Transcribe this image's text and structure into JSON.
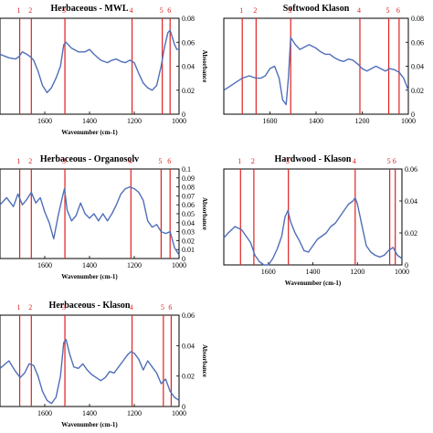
{
  "colors": {
    "curve": "#4f6fb8",
    "marker": "#e02020",
    "frame": "#000000"
  },
  "chart_data": [
    {
      "type": "line",
      "title": "Herbaceous - MWL",
      "xlabel": "Wavenumber (cm-1)",
      "ylabel": "Absorbance",
      "xlim": [
        1000,
        1800
      ],
      "xdir": "reversed",
      "ylim": [
        0,
        0.08
      ],
      "xticks": [
        "1600",
        "1400",
        "1200",
        "1000"
      ],
      "yticks": [
        "0",
        "0.02",
        "0.04",
        "0.06",
        "0.08"
      ],
      "markers": [
        {
          "label": "1",
          "x": 1712
        },
        {
          "label": "2",
          "x": 1660
        },
        {
          "label": "3",
          "x": 1510
        },
        {
          "label": "4",
          "x": 1210
        },
        {
          "label": "5",
          "x": 1075
        },
        {
          "label": "6",
          "x": 1040
        }
      ],
      "series": [
        {
          "x": [
            1800,
            1760,
            1730,
            1715,
            1700,
            1680,
            1665,
            1650,
            1630,
            1610,
            1590,
            1570,
            1550,
            1530,
            1515,
            1505,
            1480,
            1450,
            1420,
            1400,
            1380,
            1350,
            1320,
            1300,
            1280,
            1260,
            1240,
            1220,
            1200,
            1180,
            1160,
            1140,
            1120,
            1100,
            1080,
            1065,
            1050,
            1040,
            1030,
            1020,
            1010,
            1000
          ],
          "y": [
            0.05,
            0.047,
            0.046,
            0.048,
            0.052,
            0.05,
            0.048,
            0.045,
            0.036,
            0.024,
            0.018,
            0.022,
            0.03,
            0.04,
            0.058,
            0.06,
            0.055,
            0.052,
            0.052,
            0.054,
            0.05,
            0.045,
            0.043,
            0.045,
            0.046,
            0.044,
            0.043,
            0.045,
            0.043,
            0.034,
            0.026,
            0.022,
            0.02,
            0.024,
            0.04,
            0.056,
            0.068,
            0.07,
            0.064,
            0.058,
            0.054,
            0.054
          ]
        }
      ]
    },
    {
      "type": "line",
      "title": "Softwood Klason",
      "xlabel": "",
      "ylabel": "",
      "xlim": [
        1000,
        1800
      ],
      "xdir": "reversed",
      "ylim": [
        0,
        0.08
      ],
      "xticks": [
        "1600",
        "1400",
        "1200",
        "1000"
      ],
      "yticks": [
        "0",
        "0.02",
        "0.04",
        "0.06",
        "0.08"
      ],
      "markers": [
        {
          "label": "1",
          "x": 1720
        },
        {
          "label": "2",
          "x": 1660
        },
        {
          "label": "3",
          "x": 1510
        },
        {
          "label": "4",
          "x": 1210
        },
        {
          "label": "5",
          "x": 1085
        },
        {
          "label": "6",
          "x": 1040
        }
      ],
      "series": [
        {
          "x": [
            1800,
            1760,
            1720,
            1690,
            1660,
            1640,
            1620,
            1600,
            1580,
            1560,
            1545,
            1530,
            1520,
            1510,
            1490,
            1470,
            1450,
            1430,
            1400,
            1380,
            1360,
            1340,
            1320,
            1300,
            1280,
            1260,
            1240,
            1220,
            1210,
            1200,
            1180,
            1160,
            1140,
            1120,
            1100,
            1080,
            1060,
            1040,
            1020,
            1000
          ],
          "y": [
            0.02,
            0.025,
            0.03,
            0.032,
            0.03,
            0.03,
            0.032,
            0.038,
            0.04,
            0.03,
            0.012,
            0.008,
            0.03,
            0.064,
            0.058,
            0.054,
            0.056,
            0.058,
            0.055,
            0.052,
            0.05,
            0.05,
            0.047,
            0.045,
            0.044,
            0.046,
            0.045,
            0.042,
            0.04,
            0.038,
            0.036,
            0.038,
            0.04,
            0.038,
            0.036,
            0.038,
            0.037,
            0.035,
            0.03,
            0.02
          ]
        }
      ]
    },
    {
      "type": "line",
      "title": "Herbaceous - Organosolv",
      "xlabel": "Wavenumber (cm-1)",
      "ylabel": "Absorbance",
      "xlim": [
        1000,
        1800
      ],
      "xdir": "reversed",
      "ylim": [
        0,
        0.1
      ],
      "xticks": [
        "1600",
        "1400",
        "1200",
        "1000"
      ],
      "yticks": [
        "0",
        "0.01",
        "0.02",
        "0.03",
        "0.04",
        "0.05",
        "0.06",
        "0.07",
        "0.08",
        "0.09",
        "0.1"
      ],
      "markers": [
        {
          "label": "1",
          "x": 1712
        },
        {
          "label": "2",
          "x": 1660
        },
        {
          "label": "3",
          "x": 1510
        },
        {
          "label": "4",
          "x": 1215
        },
        {
          "label": "5",
          "x": 1080
        },
        {
          "label": "6",
          "x": 1040
        }
      ],
      "series": [
        {
          "x": [
            1800,
            1770,
            1740,
            1720,
            1700,
            1680,
            1660,
            1640,
            1620,
            1600,
            1580,
            1560,
            1540,
            1520,
            1512,
            1500,
            1480,
            1460,
            1440,
            1420,
            1400,
            1380,
            1360,
            1340,
            1320,
            1300,
            1280,
            1260,
            1240,
            1220,
            1200,
            1180,
            1160,
            1140,
            1120,
            1100,
            1080,
            1060,
            1040,
            1020,
            1000
          ],
          "y": [
            0.06,
            0.068,
            0.058,
            0.072,
            0.06,
            0.066,
            0.074,
            0.062,
            0.068,
            0.052,
            0.04,
            0.022,
            0.048,
            0.07,
            0.078,
            0.054,
            0.042,
            0.048,
            0.062,
            0.05,
            0.045,
            0.05,
            0.042,
            0.05,
            0.042,
            0.05,
            0.06,
            0.072,
            0.078,
            0.08,
            0.078,
            0.074,
            0.065,
            0.042,
            0.035,
            0.038,
            0.03,
            0.028,
            0.03,
            0.012,
            0.004
          ]
        }
      ]
    },
    {
      "type": "line",
      "title": "Hardwood - Klason",
      "xlabel": "Wavenumber (cm-1)",
      "ylabel": "",
      "xlim": [
        1000,
        1800
      ],
      "xdir": "reversed",
      "ylim": [
        0,
        0.06
      ],
      "xticks": [
        "1600",
        "1400",
        "1200",
        "1000"
      ],
      "yticks": [
        "0",
        "0.02",
        "0.04",
        "0.06"
      ],
      "markers": [
        {
          "label": "1",
          "x": 1725
        },
        {
          "label": "2",
          "x": 1665
        },
        {
          "label": "3",
          "x": 1510
        },
        {
          "label": "4",
          "x": 1210
        },
        {
          "label": "5",
          "x": 1055
        },
        {
          "label": "6",
          "x": 1030
        }
      ],
      "series": [
        {
          "x": [
            1800,
            1780,
            1750,
            1720,
            1700,
            1680,
            1660,
            1640,
            1620,
            1600,
            1580,
            1560,
            1540,
            1525,
            1512,
            1500,
            1480,
            1460,
            1440,
            1420,
            1400,
            1380,
            1360,
            1340,
            1320,
            1300,
            1280,
            1260,
            1240,
            1220,
            1210,
            1200,
            1180,
            1160,
            1140,
            1120,
            1100,
            1080,
            1060,
            1040,
            1020,
            1000
          ],
          "y": [
            0.017,
            0.02,
            0.024,
            0.022,
            0.018,
            0.014,
            0.006,
            0.002,
            0.0,
            0.0,
            0.004,
            0.01,
            0.018,
            0.03,
            0.034,
            0.027,
            0.02,
            0.015,
            0.009,
            0.008,
            0.012,
            0.016,
            0.018,
            0.02,
            0.024,
            0.026,
            0.03,
            0.034,
            0.038,
            0.04,
            0.042,
            0.038,
            0.025,
            0.012,
            0.008,
            0.006,
            0.005,
            0.006,
            0.009,
            0.011,
            0.006,
            0.004
          ]
        }
      ]
    },
    {
      "type": "line",
      "title": "Herbaceous - Klason",
      "xlabel": "Wavenumber (cm-1)",
      "ylabel": "Absorbance",
      "xlim": [
        1000,
        1800
      ],
      "xdir": "reversed",
      "ylim": [
        0,
        0.06
      ],
      "xticks": [
        "1600",
        "1400",
        "1200",
        "1000"
      ],
      "yticks": [
        "0",
        "0.02",
        "0.04",
        "0.06"
      ],
      "markers": [
        {
          "label": "1",
          "x": 1712
        },
        {
          "label": "2",
          "x": 1660
        },
        {
          "label": "3",
          "x": 1510
        },
        {
          "label": "4",
          "x": 1210
        },
        {
          "label": "5",
          "x": 1070
        },
        {
          "label": "6",
          "x": 1035
        }
      ],
      "series": [
        {
          "x": [
            1800,
            1760,
            1730,
            1710,
            1690,
            1670,
            1650,
            1630,
            1610,
            1590,
            1570,
            1550,
            1530,
            1515,
            1505,
            1490,
            1470,
            1450,
            1430,
            1410,
            1390,
            1370,
            1350,
            1330,
            1310,
            1290,
            1270,
            1250,
            1230,
            1215,
            1200,
            1180,
            1160,
            1140,
            1120,
            1100,
            1080,
            1060,
            1040,
            1020,
            1000
          ],
          "y": [
            0.025,
            0.03,
            0.023,
            0.019,
            0.022,
            0.028,
            0.027,
            0.02,
            0.01,
            0.004,
            0.002,
            0.006,
            0.02,
            0.042,
            0.044,
            0.035,
            0.026,
            0.025,
            0.028,
            0.024,
            0.021,
            0.019,
            0.017,
            0.019,
            0.023,
            0.022,
            0.026,
            0.03,
            0.034,
            0.036,
            0.035,
            0.031,
            0.024,
            0.03,
            0.026,
            0.022,
            0.015,
            0.018,
            0.01,
            0.006,
            0.004
          ]
        }
      ]
    }
  ]
}
